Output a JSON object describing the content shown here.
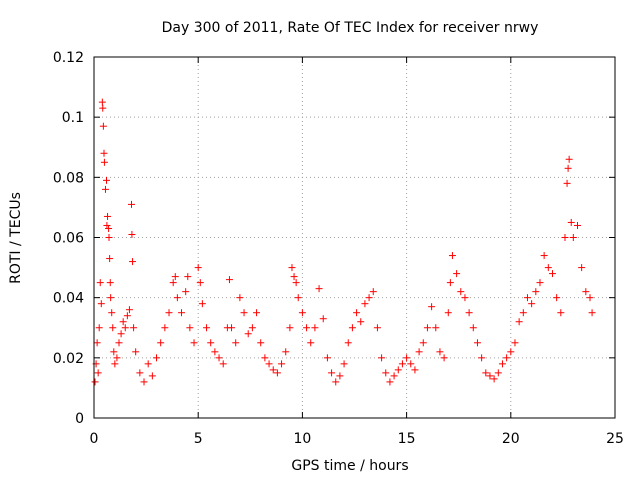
{
  "chart_data": {
    "type": "scatter",
    "title": "Day 300 of 2011, Rate Of TEC Index for receiver nrwy",
    "xlabel": "GPS time / hours",
    "ylabel": "ROTI / TECUs",
    "xlim": [
      0,
      25
    ],
    "ylim": [
      0,
      0.12
    ],
    "xticks": [
      "0",
      "5",
      "10",
      "15",
      "20",
      "25"
    ],
    "yticks": [
      "0",
      "0.02",
      "0.04",
      "0.06",
      "0.08",
      "0.1",
      "0.12"
    ],
    "grid": true,
    "marker": "+",
    "color": "#ff0000",
    "series": [
      {
        "values": [
          [
            0.05,
            0.012
          ],
          [
            0.1,
            0.018
          ],
          [
            0.15,
            0.025
          ],
          [
            0.2,
            0.015
          ],
          [
            0.25,
            0.03
          ],
          [
            0.3,
            0.045
          ],
          [
            0.35,
            0.038
          ],
          [
            0.4,
            0.105
          ],
          [
            0.42,
            0.103
          ],
          [
            0.45,
            0.097
          ],
          [
            0.48,
            0.088
          ],
          [
            0.5,
            0.085
          ],
          [
            0.55,
            0.076
          ],
          [
            0.6,
            0.079
          ],
          [
            0.62,
            0.064
          ],
          [
            0.65,
            0.067
          ],
          [
            0.7,
            0.063
          ],
          [
            0.72,
            0.06
          ],
          [
            0.75,
            0.053
          ],
          [
            0.78,
            0.045
          ],
          [
            0.8,
            0.04
          ],
          [
            0.85,
            0.035
          ],
          [
            0.9,
            0.03
          ],
          [
            0.95,
            0.022
          ],
          [
            1.0,
            0.018
          ],
          [
            1.1,
            0.02
          ],
          [
            1.2,
            0.025
          ],
          [
            1.3,
            0.028
          ],
          [
            1.4,
            0.032
          ],
          [
            1.5,
            0.03
          ],
          [
            1.6,
            0.034
          ],
          [
            1.7,
            0.036
          ],
          [
            1.8,
            0.071
          ],
          [
            1.82,
            0.061
          ],
          [
            1.85,
            0.052
          ],
          [
            1.9,
            0.03
          ],
          [
            2.0,
            0.022
          ],
          [
            2.2,
            0.015
          ],
          [
            2.4,
            0.012
          ],
          [
            2.6,
            0.018
          ],
          [
            2.8,
            0.014
          ],
          [
            3.0,
            0.02
          ],
          [
            3.2,
            0.025
          ],
          [
            3.4,
            0.03
          ],
          [
            3.6,
            0.035
          ],
          [
            3.8,
            0.045
          ],
          [
            3.9,
            0.047
          ],
          [
            4.0,
            0.04
          ],
          [
            4.2,
            0.035
          ],
          [
            4.4,
            0.042
          ],
          [
            4.5,
            0.047
          ],
          [
            4.6,
            0.03
          ],
          [
            4.8,
            0.025
          ],
          [
            5.0,
            0.05
          ],
          [
            5.1,
            0.045
          ],
          [
            5.2,
            0.038
          ],
          [
            5.4,
            0.03
          ],
          [
            5.6,
            0.025
          ],
          [
            5.8,
            0.022
          ],
          [
            6.0,
            0.02
          ],
          [
            6.2,
            0.018
          ],
          [
            6.4,
            0.03
          ],
          [
            6.5,
            0.046
          ],
          [
            6.6,
            0.03
          ],
          [
            6.8,
            0.025
          ],
          [
            7.0,
            0.04
          ],
          [
            7.2,
            0.035
          ],
          [
            7.4,
            0.028
          ],
          [
            7.6,
            0.03
          ],
          [
            7.8,
            0.035
          ],
          [
            8.0,
            0.025
          ],
          [
            8.2,
            0.02
          ],
          [
            8.4,
            0.018
          ],
          [
            8.6,
            0.016
          ],
          [
            8.8,
            0.015
          ],
          [
            9.0,
            0.018
          ],
          [
            9.2,
            0.022
          ],
          [
            9.4,
            0.03
          ],
          [
            9.5,
            0.05
          ],
          [
            9.6,
            0.047
          ],
          [
            9.7,
            0.045
          ],
          [
            9.8,
            0.04
          ],
          [
            10.0,
            0.035
          ],
          [
            10.2,
            0.03
          ],
          [
            10.4,
            0.025
          ],
          [
            10.6,
            0.03
          ],
          [
            10.8,
            0.043
          ],
          [
            11.0,
            0.033
          ],
          [
            11.2,
            0.02
          ],
          [
            11.4,
            0.015
          ],
          [
            11.6,
            0.012
          ],
          [
            11.8,
            0.014
          ],
          [
            12.0,
            0.018
          ],
          [
            12.2,
            0.025
          ],
          [
            12.4,
            0.03
          ],
          [
            12.6,
            0.035
          ],
          [
            12.8,
            0.032
          ],
          [
            13.0,
            0.038
          ],
          [
            13.2,
            0.04
          ],
          [
            13.4,
            0.042
          ],
          [
            13.6,
            0.03
          ],
          [
            13.8,
            0.02
          ],
          [
            14.0,
            0.015
          ],
          [
            14.2,
            0.012
          ],
          [
            14.4,
            0.014
          ],
          [
            14.6,
            0.016
          ],
          [
            14.8,
            0.018
          ],
          [
            15.0,
            0.02
          ],
          [
            15.2,
            0.018
          ],
          [
            15.4,
            0.016
          ],
          [
            15.6,
            0.022
          ],
          [
            15.8,
            0.025
          ],
          [
            16.0,
            0.03
          ],
          [
            16.2,
            0.037
          ],
          [
            16.4,
            0.03
          ],
          [
            16.6,
            0.022
          ],
          [
            16.8,
            0.02
          ],
          [
            17.0,
            0.035
          ],
          [
            17.1,
            0.045
          ],
          [
            17.2,
            0.054
          ],
          [
            17.4,
            0.048
          ],
          [
            17.6,
            0.042
          ],
          [
            17.8,
            0.04
          ],
          [
            18.0,
            0.035
          ],
          [
            18.2,
            0.03
          ],
          [
            18.4,
            0.025
          ],
          [
            18.6,
            0.02
          ],
          [
            18.8,
            0.015
          ],
          [
            19.0,
            0.014
          ],
          [
            19.2,
            0.013
          ],
          [
            19.4,
            0.015
          ],
          [
            19.6,
            0.018
          ],
          [
            19.8,
            0.02
          ],
          [
            20.0,
            0.022
          ],
          [
            20.2,
            0.025
          ],
          [
            20.4,
            0.032
          ],
          [
            20.6,
            0.035
          ],
          [
            20.8,
            0.04
          ],
          [
            21.0,
            0.038
          ],
          [
            21.2,
            0.042
          ],
          [
            21.4,
            0.045
          ],
          [
            21.6,
            0.054
          ],
          [
            21.8,
            0.05
          ],
          [
            22.0,
            0.048
          ],
          [
            22.2,
            0.04
          ],
          [
            22.4,
            0.035
          ],
          [
            22.6,
            0.06
          ],
          [
            22.7,
            0.078
          ],
          [
            22.75,
            0.083
          ],
          [
            22.8,
            0.086
          ],
          [
            22.9,
            0.065
          ],
          [
            23.0,
            0.06
          ],
          [
            23.2,
            0.064
          ],
          [
            23.4,
            0.05
          ],
          [
            23.6,
            0.042
          ],
          [
            23.8,
            0.04
          ],
          [
            23.9,
            0.035
          ]
        ]
      }
    ]
  }
}
